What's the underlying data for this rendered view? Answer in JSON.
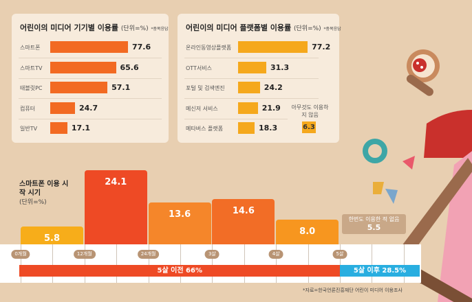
{
  "chart_data": [
    {
      "type": "bar",
      "orientation": "horizontal",
      "title": "어린이의 미디어 기기별 이용률",
      "unit": "(단위=%)",
      "note": "*중복응답",
      "categories": [
        "스마트폰",
        "스마트TV",
        "태블릿PC",
        "컴퓨터",
        "일반TV"
      ],
      "values": [
        77.6,
        65.6,
        57.1,
        24.7,
        17.1
      ],
      "color": "#f26a22"
    },
    {
      "type": "bar",
      "orientation": "horizontal",
      "title": "어린이의 미디어 플랫폼별 이용률",
      "unit": "(단위=%)",
      "note": "*중복응답",
      "categories": [
        "온라인동영상플랫폼",
        "OTT서비스",
        "포털 및 검색엔진",
        "메신저 서비스",
        "메타버스 플랫폼"
      ],
      "values": [
        77.2,
        31.3,
        24.2,
        21.9,
        18.3
      ],
      "color": "#f5a81c",
      "extra": {
        "label": "아무것도 이용하지 않음",
        "value": 6.3
      }
    },
    {
      "type": "bar",
      "title": "스마트폰 이용 시작 시기",
      "unit": "(단위=%)",
      "ticks": [
        "0개월",
        "12개월",
        "24개월",
        "3살",
        "4살",
        "5살"
      ],
      "values": [
        5.8,
        24.1,
        13.6,
        14.6,
        8.0
      ],
      "colors": [
        "#f7ad1a",
        "#ee4a25",
        "#f5862a",
        "#f26d26",
        "#f7961f"
      ],
      "never": {
        "label": "한번도 이용한 적 없음",
        "value": 5.5
      },
      "summary": [
        {
          "label": "5살 이전 66%",
          "color": "#ee4a25"
        },
        {
          "label": "5살 이후  28.5%",
          "color": "#29aee0"
        }
      ]
    }
  ],
  "source": "*자료=한국언론진흥재단 어린이 미디어 이용조사"
}
